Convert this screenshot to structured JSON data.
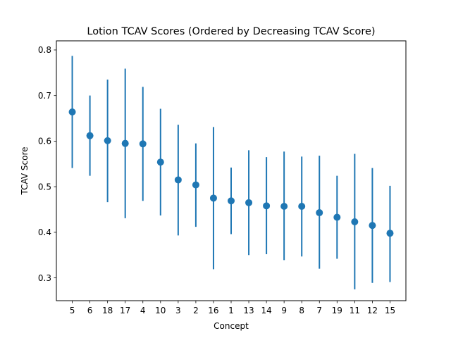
{
  "chart_data": {
    "type": "scatter",
    "title": "Lotion TCAV Scores (Ordered by Decreasing TCAV Score)",
    "xlabel": "Concept",
    "ylabel": "TCAV Score",
    "categories": [
      "5",
      "6",
      "18",
      "17",
      "4",
      "10",
      "3",
      "2",
      "16",
      "1",
      "13",
      "14",
      "9",
      "8",
      "7",
      "19",
      "11",
      "12",
      "15"
    ],
    "values": [
      0.664,
      0.612,
      0.601,
      0.595,
      0.594,
      0.554,
      0.515,
      0.504,
      0.475,
      0.469,
      0.465,
      0.458,
      0.457,
      0.457,
      0.443,
      0.433,
      0.423,
      0.415,
      0.398
    ],
    "error_low": [
      0.541,
      0.524,
      0.466,
      0.431,
      0.469,
      0.437,
      0.393,
      0.412,
      0.319,
      0.396,
      0.35,
      0.352,
      0.339,
      0.347,
      0.32,
      0.342,
      0.275,
      0.289,
      0.291
    ],
    "error_high": [
      0.787,
      0.7,
      0.735,
      0.759,
      0.719,
      0.671,
      0.636,
      0.595,
      0.631,
      0.542,
      0.58,
      0.565,
      0.577,
      0.566,
      0.568,
      0.524,
      0.572,
      0.541,
      0.502
    ],
    "ylim": [
      0.25,
      0.82
    ],
    "yticks": [
      0.3,
      0.4,
      0.5,
      0.6,
      0.7,
      0.8
    ],
    "ytick_labels": [
      "0.3",
      "0.4",
      "0.5",
      "0.6",
      "0.7",
      "0.8"
    ],
    "grid": false,
    "color": "#1f77b4"
  }
}
